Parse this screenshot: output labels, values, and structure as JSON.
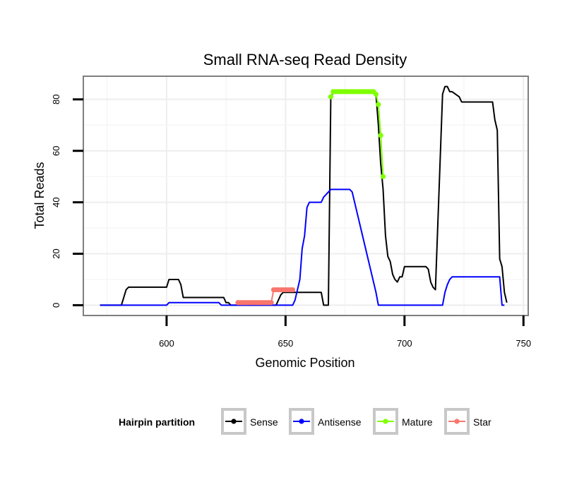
{
  "chart_data": {
    "type": "line",
    "title": "Small RNA-seq Read Density",
    "xlabel": "Genomic Position",
    "ylabel": "Total Reads",
    "xlim": [
      565,
      752
    ],
    "ylim": [
      -4,
      89
    ],
    "x_ticks": [
      600,
      650,
      700,
      750
    ],
    "y_ticks": [
      0,
      20,
      40,
      60,
      80
    ],
    "legend_title": "Hairpin partition",
    "legend_position": "bottom",
    "series": [
      {
        "name": "Sense",
        "color": "#000000",
        "marker": "none",
        "x": [
          572,
          581,
          583,
          584,
          600,
          601,
          605,
          606,
          607,
          624,
          625,
          626,
          627,
          646,
          647,
          648,
          649,
          651,
          652,
          665,
          666,
          667,
          668,
          669,
          670,
          671,
          687,
          688,
          689,
          690,
          691,
          692,
          693,
          694,
          695,
          696,
          697,
          698,
          699,
          700,
          709,
          710,
          711,
          712,
          713,
          716,
          717,
          718,
          719,
          720,
          723,
          724,
          725,
          737,
          738,
          739,
          740,
          741,
          742,
          743
        ],
        "values": [
          0,
          0,
          6,
          7,
          7,
          10,
          10,
          8,
          3,
          3,
          1,
          1,
          0,
          0,
          2,
          4,
          5,
          5,
          5,
          5,
          0,
          0,
          0,
          80,
          83,
          83,
          83,
          82,
          70,
          55,
          45,
          27,
          19,
          17,
          12,
          10,
          9,
          11,
          11,
          15,
          15,
          14,
          9,
          7,
          6,
          82,
          85,
          85,
          83,
          83,
          81,
          79,
          79,
          79,
          72,
          68,
          18,
          15,
          5,
          1
        ]
      },
      {
        "name": "Antisense",
        "color": "#0000ff",
        "marker": "none",
        "x": [
          572,
          600,
          601,
          622,
          623,
          653,
          654,
          656,
          657,
          658,
          659,
          660,
          661,
          665,
          666,
          669,
          677,
          678,
          688,
          689,
          716,
          717,
          718,
          719,
          720,
          740,
          741,
          742
        ],
        "values": [
          0,
          0,
          1,
          1,
          0,
          0,
          2,
          10,
          22,
          27,
          38,
          40,
          40,
          40,
          42,
          45,
          45,
          44,
          5,
          0,
          0,
          5,
          8,
          10,
          11,
          11,
          0,
          0
        ]
      },
      {
        "name": "Mature",
        "color": "#7fff00",
        "marker": "circle",
        "x": [
          669,
          670,
          671,
          672,
          673,
          674,
          675,
          676,
          677,
          678,
          679,
          680,
          681,
          682,
          683,
          684,
          685,
          686,
          687,
          688,
          689,
          690,
          691
        ],
        "values": [
          81,
          83,
          83,
          83,
          83,
          83,
          83,
          83,
          83,
          83,
          83,
          83,
          83,
          83,
          83,
          83,
          83,
          83,
          83,
          82,
          78,
          66,
          50
        ]
      },
      {
        "name": "Star",
        "color": "#f8766d",
        "marker": "circle",
        "x": [
          630,
          631,
          632,
          633,
          634,
          635,
          636,
          637,
          638,
          639,
          640,
          641,
          642,
          643,
          644,
          645,
          646,
          647,
          648,
          649,
          650,
          651,
          652,
          653
        ],
        "values": [
          1,
          1,
          1,
          1,
          1,
          1,
          1,
          1,
          1,
          1,
          1,
          1,
          1,
          1,
          1,
          6,
          6,
          6,
          6,
          6,
          6,
          6,
          6,
          6
        ]
      }
    ]
  }
}
